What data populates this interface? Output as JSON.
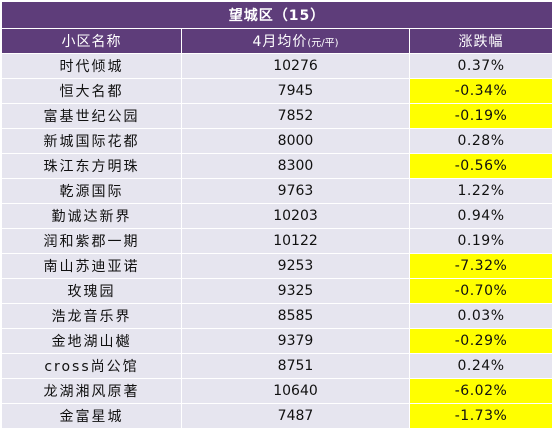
{
  "title": "望城区（15）",
  "columns": {
    "name": "小区名称",
    "price": "4月均价",
    "price_unit": "(元/平)",
    "change": "涨跌幅"
  },
  "colors": {
    "header_bg": "#5e3d7a",
    "header_text": "#ffffff",
    "row_bg": "#e6e5ef",
    "negative_highlight": "#ffff00"
  },
  "rows": [
    {
      "name": "时代倾城",
      "price": "10276",
      "change": "0.37%",
      "negative": false
    },
    {
      "name": "恒大名都",
      "price": "7945",
      "change": "-0.34%",
      "negative": true
    },
    {
      "name": "富基世纪公园",
      "price": "7852",
      "change": "-0.19%",
      "negative": true
    },
    {
      "name": "新城国际花都",
      "price": "8000",
      "change": "0.28%",
      "negative": false
    },
    {
      "name": "珠江东方明珠",
      "price": "8300",
      "change": "-0.56%",
      "negative": true
    },
    {
      "name": "乾源国际",
      "price": "9763",
      "change": "1.22%",
      "negative": false
    },
    {
      "name": "勤诚达新界",
      "price": "10203",
      "change": "0.94%",
      "negative": false
    },
    {
      "name": "润和紫郡一期",
      "price": "10122",
      "change": "0.19%",
      "negative": false
    },
    {
      "name": "南山苏迪亚诺",
      "price": "9253",
      "change": "-7.32%",
      "negative": true
    },
    {
      "name": "玫瑰园",
      "price": "9325",
      "change": "-0.70%",
      "negative": true
    },
    {
      "name": "浩龙音乐界",
      "price": "8585",
      "change": "0.03%",
      "negative": false
    },
    {
      "name": "金地湖山樾",
      "price": "9379",
      "change": "-0.29%",
      "negative": true
    },
    {
      "name": "cross尚公馆",
      "price": "8751",
      "change": "0.24%",
      "negative": false
    },
    {
      "name": "龙湖湘风原著",
      "price": "10640",
      "change": "-6.02%",
      "negative": true
    },
    {
      "name": "金富星城",
      "price": "7487",
      "change": "-1.73%",
      "negative": true
    }
  ]
}
